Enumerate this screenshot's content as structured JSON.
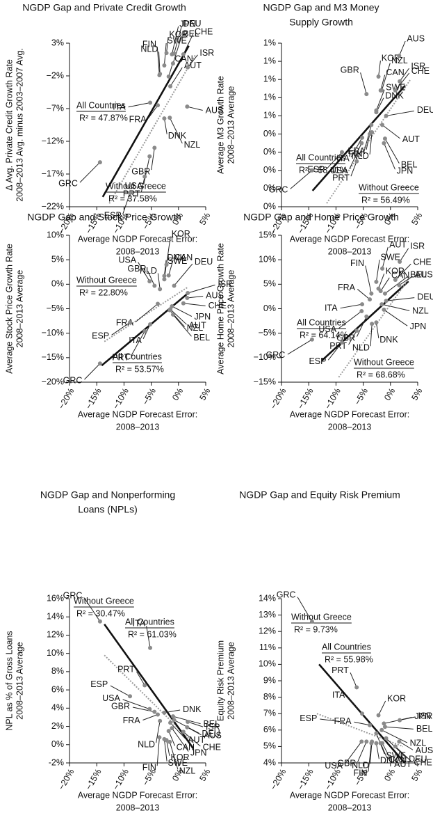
{
  "chart_data": [
    {
      "type": "scatter",
      "title": [
        "NGDP Gap and Private Credit Growth"
      ],
      "xlabel": [
        "Average NGDP Forecast Error:",
        "2008–2013"
      ],
      "ylabel": [
        "Δ Avg. Private Credit Growth Rate",
        "2008–2013 Avg. minus 2003–2007 Avg."
      ],
      "xlim": [
        -20,
        5
      ],
      "xticks": [
        {
          "value": -20,
          "label": "−20%"
        },
        {
          "value": -15,
          "label": "−15%"
        },
        {
          "value": -10,
          "label": "−10%"
        },
        {
          "value": -5,
          "label": "−5%"
        },
        {
          "value": 0,
          "label": "0%"
        },
        {
          "value": 5,
          "label": "5%"
        }
      ],
      "ylim": [
        -22,
        3
      ],
      "yticks": [
        {
          "value": 3,
          "label": "3%"
        },
        {
          "value": -2,
          "label": "−2%"
        },
        {
          "value": -7,
          "label": "−7%"
        },
        {
          "value": -12,
          "label": "−12%"
        },
        {
          "value": -17,
          "label": "−17%"
        },
        {
          "value": -22,
          "label": "−22%"
        }
      ],
      "color": "#8a8a8a",
      "labels": [
        "AUS",
        "AUT",
        "BEL",
        "CAN",
        "CHE",
        "DEU",
        "DNK",
        "ESP",
        "FIN",
        "FRA",
        "GBR",
        "GRC",
        "ISR",
        "ITA",
        "JPN",
        "KOR",
        "NLD",
        "NZL",
        "PRT",
        "SWE",
        "USA"
      ],
      "x": [
        1.6,
        -1.5,
        -1.0,
        -1.8,
        0.9,
        -0.8,
        -2.6,
        -8.9,
        -3.5,
        -3.8,
        -4.4,
        -14.4,
        1.7,
        -5.2,
        -1.2,
        -2.2,
        -3.4,
        -1.6,
        -6.2,
        -2.6,
        -5.3
      ],
      "y": [
        -6.7,
        -3.6,
        -0.1,
        -2.1,
        1.3,
        1.4,
        -8.5,
        -19.9,
        -1.9,
        -6.5,
        -13.0,
        -15.2,
        -0.7,
        -6.1,
        1.3,
        1.5,
        -1.7,
        -8.4,
        -17.4,
        -0.4,
        -14.3
      ],
      "fits": [
        {
          "name": "All Countries",
          "r2_label": "R² = 47.87%",
          "x": [
            -13.9,
            1.9
          ],
          "y": [
            -20.5,
            2.6
          ],
          "color": "#111111",
          "style": "solid"
        },
        {
          "name": "Without Greece",
          "r2_label": "R² = 37.58%",
          "x": [
            -12.7,
            3.1
          ],
          "y": [
            -21.5,
            1.2
          ],
          "color": "#9a9a9a",
          "style": "dotted"
        }
      ]
    },
    {
      "type": "scatter",
      "title": [
        "NGDP Gap and M3 Money",
        "Supply Growth"
      ],
      "xlabel": [
        "Average NGDP Forecast Error:",
        "2008–2013"
      ],
      "ylabel": [
        "Average M3 Growth Rate",
        "2008–2013 Average"
      ],
      "xlim": [
        -20,
        5
      ],
      "xticks": [
        {
          "value": -20,
          "label": "−20%"
        },
        {
          "value": -15,
          "label": "−15%"
        },
        {
          "value": -10,
          "label": "−10%"
        },
        {
          "value": -5,
          "label": "−5%"
        },
        {
          "value": 0,
          "label": "0%"
        },
        {
          "value": 5,
          "label": "5%"
        }
      ],
      "ylim": [
        0,
        0.9
      ],
      "yticks": [
        {
          "value": 0.9,
          "label": "1%"
        },
        {
          "value": 0.8,
          "label": "1%"
        },
        {
          "value": 0.7,
          "label": "1%"
        },
        {
          "value": 0.6,
          "label": "1%"
        },
        {
          "value": 0.5,
          "label": "1%"
        },
        {
          "value": 0.4,
          "label": "0%"
        },
        {
          "value": 0.3,
          "label": "0%"
        },
        {
          "value": 0.2,
          "label": "0%"
        },
        {
          "value": 0.1,
          "label": "0%"
        },
        {
          "value": 0,
          "label": "0%"
        }
      ],
      "color": "#8a8a8a",
      "labels": [
        "AUS",
        "AUT",
        "BEL",
        "CAN",
        "CHE",
        "DEU",
        "DNK",
        "ESP",
        "FIN",
        "FRA",
        "GBR",
        "GRC",
        "ISR",
        "ITA",
        "JPN",
        "KOR",
        "NLD",
        "NZL",
        "PRT",
        "SWE",
        "USA"
      ],
      "x": [
        1.6,
        -1.5,
        -1.0,
        -1.8,
        0.9,
        -0.8,
        -2.6,
        -8.9,
        -3.5,
        -3.8,
        -4.4,
        -14.4,
        1.7,
        -5.2,
        -1.2,
        -2.2,
        -3.4,
        -1.6,
        -6.2,
        -2.6,
        -5.3
      ],
      "y": [
        0.83,
        0.45,
        0.375,
        0.64,
        0.64,
        0.5,
        0.52,
        0.3,
        0.45,
        0.4,
        0.62,
        0.2,
        0.69,
        0.38,
        0.35,
        0.716,
        0.41,
        0.64,
        0.25,
        0.53,
        0.35
      ],
      "fits": [
        {
          "name": "All Countries",
          "r2_label": "R² = 58.41%",
          "x": [
            -14.3,
            2.7
          ],
          "y": [
            0.088,
            0.667
          ],
          "color": "#111111",
          "style": "solid"
        },
        {
          "name": "Without Greece",
          "r2_label": "R² = 56.49%",
          "x": [
            -11.7,
            3.6
          ],
          "y": [
            0.019,
            0.697
          ],
          "color": "#9a9a9a",
          "style": "dotted"
        }
      ]
    },
    {
      "type": "scatter",
      "title": [
        "NGDP Gap and Stock Price Growth"
      ],
      "xlabel": [
        "Average NGDP Forecast Error:",
        "2008–2013"
      ],
      "ylabel": [
        "Average Stock Price Growth Rate",
        "2008–2013 Average"
      ],
      "xlim": [
        -20,
        5
      ],
      "xticks": [
        {
          "value": -20,
          "label": "−20%"
        },
        {
          "value": -15,
          "label": "−15%"
        },
        {
          "value": -10,
          "label": "−10%"
        },
        {
          "value": -5,
          "label": "−5%"
        },
        {
          "value": 0,
          "label": "0%"
        },
        {
          "value": 5,
          "label": "5%"
        }
      ],
      "ylim": [
        -20,
        10
      ],
      "yticks": [
        {
          "value": 10,
          "label": "10%"
        },
        {
          "value": 5,
          "label": "5%"
        },
        {
          "value": 0,
          "label": "0%"
        },
        {
          "value": -5,
          "label": "−5%"
        },
        {
          "value": -10,
          "label": "−10%"
        },
        {
          "value": -15,
          "label": "−15%"
        },
        {
          "value": -20,
          "label": "−20%"
        }
      ],
      "color": "#8a8a8a",
      "labels": [
        "AUS",
        "AUT",
        "BEL",
        "CAN",
        "CHE",
        "DEU",
        "DNK",
        "ESP",
        "FRA",
        "GBR",
        "GRC",
        "ISR",
        "ITA",
        "JPN",
        "KOR",
        "NLD",
        "NZL",
        "PRT",
        "SWE",
        "USA"
      ],
      "x": [
        1.6,
        -1.5,
        -1.0,
        -1.8,
        0.9,
        -0.8,
        -2.6,
        -8.9,
        -3.8,
        -4.4,
        -14.4,
        1.7,
        -5.2,
        -1.2,
        -2.2,
        -3.4,
        -1.6,
        -6.2,
        -2.6,
        -5.3
      ],
      "y": [
        -2.8,
        -5.1,
        -6.2,
        1.8,
        -3.9,
        -0.3,
        1.7,
        -7.8,
        -4.0,
        -0.3,
        -16.2,
        -1.8,
        -8.2,
        -4.5,
        4.0,
        -1.0,
        -5.3,
        -9.6,
        1.0,
        0.6
      ],
      "fits": [
        {
          "name": "All Countries",
          "r2_label": "R² = 53.57%",
          "x": [
            -14.1,
            1.9
          ],
          "y": [
            -16.6,
            -1.7
          ],
          "color": "#111111",
          "style": "solid"
        },
        {
          "name": "Without Greece",
          "r2_label": "R² = 22.80%",
          "x": [
            -13.6,
            1.7
          ],
          "y": [
            -11.7,
            -0.6
          ],
          "color": "#9a9a9a",
          "style": "dotted"
        }
      ]
    },
    {
      "type": "scatter",
      "title": [
        "NGDP Gap and Home Price Growth"
      ],
      "xlabel": [
        "Average NGDP Forecast Error:",
        "2008–2013"
      ],
      "ylabel": [
        "Average Home Price Growth Rate",
        "2008–2013 Average"
      ],
      "xlim": [
        -20,
        5
      ],
      "xticks": [
        {
          "value": -20,
          "label": "−20%"
        },
        {
          "value": -15,
          "label": "−15%"
        },
        {
          "value": -10,
          "label": "−10%"
        },
        {
          "value": -5,
          "label": "−5%"
        },
        {
          "value": 0,
          "label": "0%"
        },
        {
          "value": 5,
          "label": "5%"
        }
      ],
      "ylim": [
        -15,
        15
      ],
      "yticks": [
        {
          "value": 15,
          "label": "15%"
        },
        {
          "value": 10,
          "label": "10%"
        },
        {
          "value": 5,
          "label": "5%"
        },
        {
          "value": 0,
          "label": "0%"
        },
        {
          "value": -5,
          "label": "−5%"
        },
        {
          "value": -10,
          "label": "−10%"
        },
        {
          "value": -15,
          "label": "−15%"
        }
      ],
      "color": "#8a8a8a",
      "labels": [
        "AUS",
        "AUT",
        "BEL",
        "CAN",
        "CHE",
        "DEU",
        "DNK",
        "ESP",
        "FIN",
        "FRA",
        "GBR",
        "GRC",
        "ISR",
        "ITA",
        "JPN",
        "KOR",
        "NLD",
        "NZL",
        "PRT",
        "SWE",
        "USA"
      ],
      "x": [
        1.6,
        -1.5,
        -1.0,
        -1.8,
        0.9,
        -0.8,
        -2.6,
        -8.9,
        -3.5,
        -3.8,
        -4.4,
        -14.4,
        1.7,
        -5.2,
        -1.2,
        -2.2,
        -3.4,
        -1.6,
        -6.2,
        -2.6,
        -5.3
      ],
      "y": [
        4.8,
        8.2,
        3.1,
        3.6,
        5.9,
        1.6,
        -2.8,
        -6.9,
        3.1,
        1.9,
        -1.6,
        -6.3,
        9.6,
        0.9,
        -0.2,
        4.1,
        -3.1,
        0.9,
        -4.5,
        5.5,
        -0.5
      ],
      "fits": [
        {
          "name": "All Countries",
          "r2_label": "R² = 64.14%",
          "x": [
            -12.6,
            3.3
          ],
          "y": [
            -10.6,
            5.6
          ],
          "color": "#111111",
          "style": "solid"
        },
        {
          "name": "Without Greece",
          "r2_label": "R² = 68.68%",
          "x": [
            -9.5,
            3.6
          ],
          "y": [
            -14.0,
            6.5
          ],
          "color": "#9a9a9a",
          "style": "dotted"
        }
      ]
    },
    {
      "type": "scatter",
      "title": [
        "NGDP Gap and Nonperforming",
        "Loans (NPLs)"
      ],
      "xlabel": [
        "Average NGDP Forecast Error:",
        "2008–2013"
      ],
      "ylabel": [
        "NPL as % of Gross Loans",
        "2008–2013 Average"
      ],
      "xlim": [
        -20,
        5
      ],
      "xticks": [
        {
          "value": -20,
          "label": "−20%"
        },
        {
          "value": -15,
          "label": "−15%"
        },
        {
          "value": -10,
          "label": "−10%"
        },
        {
          "value": -5,
          "label": "−5%"
        },
        {
          "value": 0,
          "label": "0%"
        },
        {
          "value": 5,
          "label": "5%"
        }
      ],
      "ylim": [
        -2,
        16
      ],
      "yticks": [
        {
          "value": 16,
          "label": "16%"
        },
        {
          "value": 14,
          "label": "14%"
        },
        {
          "value": 12,
          "label": "12%"
        },
        {
          "value": 10,
          "label": "10%"
        },
        {
          "value": 8,
          "label": "8%"
        },
        {
          "value": 6,
          "label": "6%"
        },
        {
          "value": 4,
          "label": "4%"
        },
        {
          "value": 2,
          "label": "2%"
        },
        {
          "value": 0,
          "label": "0%"
        },
        {
          "value": -2,
          "label": "-2%"
        }
      ],
      "color": "#8a8a8a",
      "labels": [
        "AUS",
        "AUT",
        "BEL",
        "CAN",
        "CHE",
        "DEU",
        "DNK",
        "ESP",
        "FIN",
        "FRA",
        "GBR",
        "GRC",
        "ISR",
        "ITA",
        "JPN",
        "KOR",
        "NLD",
        "NZL",
        "PRT",
        "SWE",
        "USA"
      ],
      "x": [
        1.6,
        -1.5,
        -1.0,
        -1.8,
        0.9,
        -0.8,
        -2.6,
        -8.9,
        -3.5,
        -3.8,
        -4.4,
        -14.4,
        1.7,
        -5.2,
        -1.2,
        -2.2,
        -3.4,
        -1.6,
        -6.2,
        -2.6,
        -5.3
      ],
      "y": [
        1.9,
        2.4,
        3.1,
        1.5,
        1.4,
        2.7,
        3.5,
        5.3,
        0.8,
        3.3,
        3.6,
        13.5,
        2.5,
        10.6,
        1.8,
        0.5,
        2.6,
        0.3,
        6.5,
        0.6,
        3.9
      ],
      "fits": [
        {
          "name": "Without Greece",
          "r2_label": "R² = 30.47%",
          "x": [
            -13.6,
            2.7
          ],
          "y": [
            9.8,
            0.2
          ],
          "color": "#9a9a9a",
          "style": "dotted"
        },
        {
          "name": "All Countries",
          "r2_label": "R² = 61.03%",
          "x": [
            -13.6,
            2.7
          ],
          "y": [
            13.2,
            -0.4
          ],
          "color": "#111111",
          "style": "solid"
        }
      ]
    },
    {
      "type": "scatter",
      "title": [
        "NGDP Gap and Equity Risk Premium"
      ],
      "xlabel": [
        "Average NGDP Forecast Error:",
        "2008–2013"
      ],
      "ylabel": [
        "Equity Risk Premium",
        "2008–2013 Average"
      ],
      "xlim": [
        -20,
        5
      ],
      "xticks": [
        {
          "value": -20,
          "label": "−20%"
        },
        {
          "value": -15,
          "label": "−15%"
        },
        {
          "value": -10,
          "label": "−10%"
        },
        {
          "value": -5,
          "label": "−5%"
        },
        {
          "value": 0,
          "label": "0%"
        },
        {
          "value": 5,
          "label": "5%"
        }
      ],
      "ylim": [
        4,
        14
      ],
      "yticks": [
        {
          "value": 14,
          "label": "14%"
        },
        {
          "value": 13,
          "label": "13%"
        },
        {
          "value": 12,
          "label": "12%"
        },
        {
          "value": 11,
          "label": "11%"
        },
        {
          "value": 10,
          "label": "10%"
        },
        {
          "value": 9,
          "label": "9%"
        },
        {
          "value": 8,
          "label": "8%"
        },
        {
          "value": 7,
          "label": "7%"
        },
        {
          "value": 6,
          "label": "6%"
        },
        {
          "value": 5,
          "label": "5%"
        },
        {
          "value": 4,
          "label": "4%"
        }
      ],
      "color": "#8a8a8a",
      "labels": [
        "AUS",
        "AUT",
        "BEL",
        "CAN",
        "CHE",
        "DEU",
        "DNK",
        "ESP",
        "FIN",
        "FRA",
        "GBR",
        "GRC",
        "ISR",
        "ITA",
        "JPN",
        "KOR",
        "NLD",
        "NZL",
        "PRT",
        "SWE",
        "USA"
      ],
      "x": [
        1.6,
        -1.5,
        -1.0,
        -1.8,
        0.9,
        -0.8,
        -2.6,
        -8.9,
        -3.5,
        -3.8,
        -4.4,
        -14.4,
        1.7,
        -5.2,
        -1.2,
        -2.2,
        -3.4,
        -1.6,
        -6.2,
        -2.6,
        -5.3
      ],
      "y": [
        5.3,
        5.2,
        6.2,
        5.2,
        5.0,
        5.5,
        5.2,
        6.5,
        5.2,
        6.3,
        5.3,
        12.6,
        6.6,
        7.0,
        6.4,
        6.9,
        5.3,
        6.0,
        8.6,
        5.8,
        5.3
      ],
      "fits": [
        {
          "name": "Without Greece",
          "r2_label": "R² = 9.73%",
          "x": [
            -13.5,
            2.3
          ],
          "y": [
            7.0,
            5.0
          ],
          "color": "#9a9a9a",
          "style": "dotted"
        },
        {
          "name": "All Countries",
          "r2_label": "R² = 55.98%",
          "x": [
            -13.1,
            2.6
          ],
          "y": [
            10.0,
            4.0
          ],
          "color": "#111111",
          "style": "solid"
        }
      ]
    }
  ]
}
